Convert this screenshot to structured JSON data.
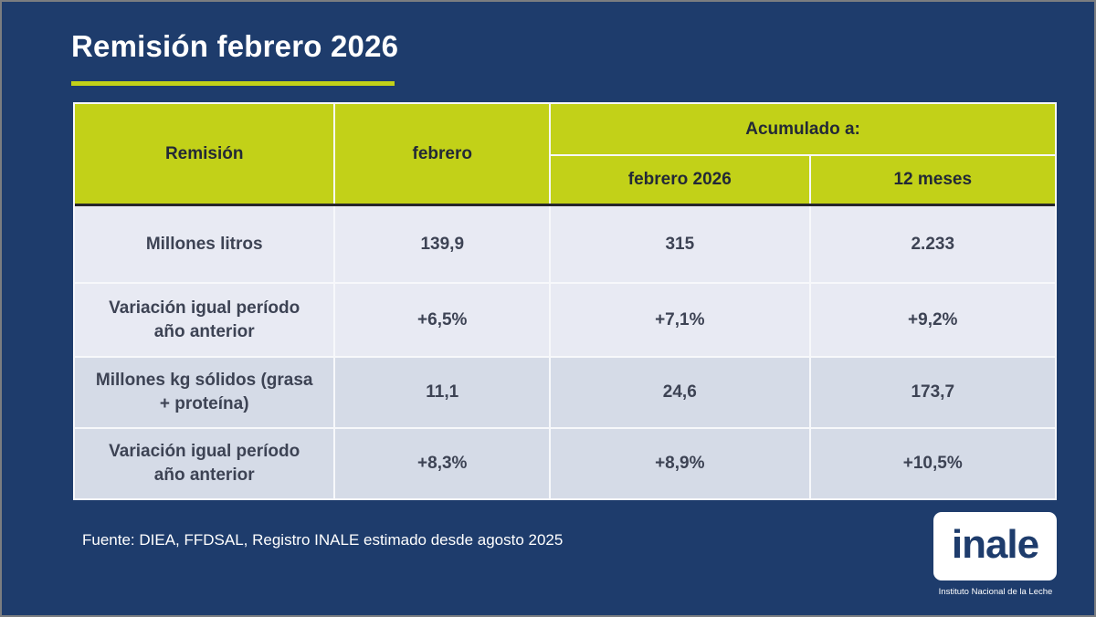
{
  "slide": {
    "title": "Remisión febrero 2026"
  },
  "table": {
    "corner_header": "Remisión",
    "col_febrero": "febrero",
    "group_header": "Acumulado a:",
    "sub_cols": [
      "febrero 2026",
      "12 meses"
    ],
    "rows": [
      {
        "label": "Millones litros",
        "values": [
          "139,9",
          "315",
          "2.233"
        ]
      },
      {
        "label": "Variación igual período año anterior",
        "values": [
          "+6,5%",
          "+7,1%",
          "+9,2%"
        ]
      },
      {
        "label": "Millones kg sólidos (grasa + proteína)",
        "values": [
          "11,1",
          "24,6",
          "173,7"
        ]
      },
      {
        "label": "Variación igual período año anterior",
        "values": [
          "+8,3%",
          "+8,9%",
          "+10,5%"
        ]
      }
    ]
  },
  "footer": {
    "source": "Fuente: DIEA, FFDSAL, Registro INALE estimado desde agosto 2025"
  },
  "logo": {
    "wordmark": "inale",
    "subtitle": "Instituto Nacional de la Leche"
  },
  "colors": {
    "background": "#1e3c6c",
    "accent_green": "#c2d118",
    "row_light": "#e8eaf3",
    "row_dark": "#d5dbe7"
  }
}
